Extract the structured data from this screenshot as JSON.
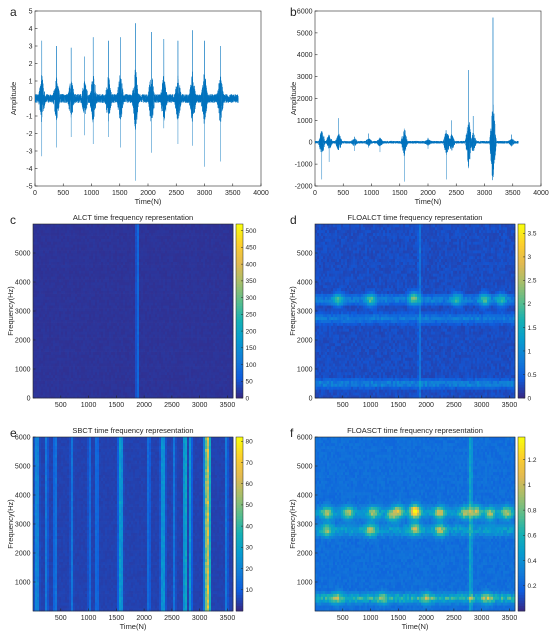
{
  "colors": {
    "signal": "#0072BD",
    "axis": "#262626",
    "parula_low": "#352A87",
    "parula_mid": "#21B1A1",
    "parula_high": "#F9FB0E"
  },
  "chart_data": [
    {
      "id": "a",
      "panel_label": "a",
      "type": "line",
      "title": "",
      "xlabel": "Time(N)",
      "ylabel": "Amplitude",
      "xlim": [
        0,
        4000
      ],
      "ylim": [
        -5,
        5
      ],
      "xticks": [
        0,
        500,
        1000,
        1500,
        2000,
        2500,
        3000,
        3500,
        4000
      ],
      "yticks": [
        -5,
        -4,
        -3,
        -2,
        -1,
        0,
        1,
        2,
        3,
        4,
        5
      ],
      "n_points": 3600,
      "baseline_noise": 0.25,
      "spikes": [
        {
          "x": 120,
          "peak": 3.3,
          "trough": -3.3
        },
        {
          "x": 380,
          "peak": 3.0,
          "trough": -2.8
        },
        {
          "x": 640,
          "peak": 2.9,
          "trough": -2.2
        },
        {
          "x": 880,
          "peak": 2.4,
          "trough": -2.1
        },
        {
          "x": 1030,
          "peak": 3.5,
          "trough": -2.6
        },
        {
          "x": 1300,
          "peak": 3.3,
          "trough": -2.2
        },
        {
          "x": 1510,
          "peak": 3.5,
          "trough": -2.8
        },
        {
          "x": 1780,
          "peak": 4.3,
          "trough": -4.7
        },
        {
          "x": 2060,
          "peak": 3.8,
          "trough": -3.1
        },
        {
          "x": 2280,
          "peak": 3.4,
          "trough": -1.7
        },
        {
          "x": 2530,
          "peak": 3.3,
          "trough": -2.6
        },
        {
          "x": 2790,
          "peak": 3.9,
          "trough": -2.7
        },
        {
          "x": 3000,
          "peak": 3.3,
          "trough": -3.9
        },
        {
          "x": 3280,
          "peak": 3.0,
          "trough": -3.6
        }
      ]
    },
    {
      "id": "b",
      "panel_label": "b",
      "type": "line",
      "title": "",
      "xlabel": "Time(N)",
      "ylabel": "Amplitude",
      "xlim": [
        0,
        4000
      ],
      "ylim": [
        -2000,
        6000
      ],
      "xticks": [
        0,
        500,
        1000,
        1500,
        2000,
        2500,
        3000,
        3500,
        4000
      ],
      "yticks": [
        -2000,
        -1000,
        0,
        1000,
        2000,
        3000,
        4000,
        5000,
        6000
      ],
      "n_points": 3600,
      "baseline_noise": 60,
      "spikes": [
        {
          "x": 120,
          "peak": 350,
          "trough": -1700
        },
        {
          "x": 250,
          "peak": 200,
          "trough": -900
        },
        {
          "x": 420,
          "peak": 1100,
          "trough": -350
        },
        {
          "x": 700,
          "peak": 250,
          "trough": -400
        },
        {
          "x": 950,
          "peak": 400,
          "trough": -250
        },
        {
          "x": 1150,
          "peak": 200,
          "trough": -450
        },
        {
          "x": 1580,
          "peak": 200,
          "trough": -1800
        },
        {
          "x": 2000,
          "peak": 200,
          "trough": -300
        },
        {
          "x": 2330,
          "peak": 300,
          "trough": -1700
        },
        {
          "x": 2420,
          "peak": 1000,
          "trough": -200
        },
        {
          "x": 2720,
          "peak": 3300,
          "trough": -350
        },
        {
          "x": 2800,
          "peak": 1200,
          "trough": -200
        },
        {
          "x": 3150,
          "peak": 5700,
          "trough": -300
        },
        {
          "x": 3480,
          "peak": 350,
          "trough": -200
        }
      ]
    },
    {
      "id": "c",
      "panel_label": "c",
      "type": "heatmap",
      "title": "ALCT time frequency representation",
      "xlabel": "",
      "ylabel": "Frequency(Hz)",
      "xlim": [
        0,
        3600
      ],
      "ylim": [
        0,
        6000
      ],
      "xticks": [
        500,
        1000,
        1500,
        2000,
        2500,
        3000,
        3500
      ],
      "yticks": [
        0,
        1000,
        2000,
        3000,
        4000,
        5000
      ],
      "colorbar_range": [
        0,
        520
      ],
      "colorbar_ticks": [
        0,
        50,
        100,
        150,
        200,
        250,
        300,
        350,
        400,
        450,
        500
      ],
      "background_level": 10,
      "vertical_bands": [
        {
          "x": 1880,
          "width": 40,
          "level": 90
        }
      ],
      "horizontal_bands": [],
      "blobs": [],
      "noise": 0.04
    },
    {
      "id": "d",
      "panel_label": "d",
      "type": "heatmap",
      "title": "FLOALCT time frequency representation",
      "xlabel": "",
      "ylabel": "Frequency(Hz)",
      "xlim": [
        0,
        3600
      ],
      "ylim": [
        0,
        6000
      ],
      "xticks": [
        500,
        1000,
        1500,
        2000,
        2500,
        3000,
        3500
      ],
      "yticks": [
        0,
        1000,
        2000,
        3000,
        4000,
        5000
      ],
      "colorbar_range": [
        0,
        3.7
      ],
      "colorbar_ticks": [
        0,
        0.5,
        1,
        1.5,
        2,
        2.5,
        3,
        3.5
      ],
      "background_level": 0.25,
      "vertical_bands": [
        {
          "x": 1880,
          "width": 30,
          "level": 0.6
        }
      ],
      "horizontal_bands": [
        {
          "y": 3400,
          "height": 250,
          "level": 0.6
        },
        {
          "y": 2750,
          "height": 250,
          "level": 0.5
        },
        {
          "y": 500,
          "height": 200,
          "level": 0.7
        }
      ],
      "blobs": [
        {
          "x": 420,
          "y": 3400,
          "level": 1.2
        },
        {
          "x": 1000,
          "y": 3400,
          "level": 1.3
        },
        {
          "x": 1780,
          "y": 3450,
          "level": 1.6
        },
        {
          "x": 2550,
          "y": 3400,
          "level": 1.1
        },
        {
          "x": 3050,
          "y": 3400,
          "level": 1.2
        },
        {
          "x": 3350,
          "y": 3400,
          "level": 1.0
        }
      ],
      "noise": 0.12
    },
    {
      "id": "e",
      "panel_label": "e",
      "type": "heatmap",
      "title": "SBCT time frequency representation",
      "xlabel": "Time(N)",
      "ylabel": "Frequency(Hz)",
      "xlim": [
        0,
        3600
      ],
      "ylim": [
        0,
        6000
      ],
      "xticks": [
        500,
        1000,
        1500,
        2000,
        2500,
        3000,
        3500
      ],
      "yticks": [
        1000,
        2000,
        3000,
        4000,
        5000,
        6000
      ],
      "colorbar_range": [
        0,
        82
      ],
      "colorbar_ticks": [
        10,
        20,
        30,
        40,
        50,
        60,
        70,
        80
      ],
      "background_level": 4,
      "vertical_bands": [
        {
          "x": 70,
          "width": 60,
          "level": 22
        },
        {
          "x": 240,
          "width": 40,
          "level": 14
        },
        {
          "x": 400,
          "width": 40,
          "level": 16
        },
        {
          "x": 700,
          "width": 40,
          "level": 12
        },
        {
          "x": 1020,
          "width": 40,
          "level": 10
        },
        {
          "x": 1150,
          "width": 40,
          "level": 14
        },
        {
          "x": 1580,
          "width": 60,
          "level": 30
        },
        {
          "x": 2080,
          "width": 40,
          "level": 12
        },
        {
          "x": 2340,
          "width": 60,
          "level": 28
        },
        {
          "x": 2540,
          "width": 40,
          "level": 12
        },
        {
          "x": 2740,
          "width": 50,
          "level": 36
        },
        {
          "x": 2830,
          "width": 40,
          "level": 24
        },
        {
          "x": 3140,
          "width": 80,
          "level": 66
        },
        {
          "x": 3480,
          "width": 40,
          "level": 14
        }
      ],
      "horizontal_bands": [],
      "blobs": [],
      "noise": 0.05
    },
    {
      "id": "f",
      "panel_label": "f",
      "type": "heatmap",
      "title": "FLOASCT time frequency representation",
      "xlabel": "Time(N)",
      "ylabel": "Frequency(Hz)",
      "xlim": [
        0,
        3600
      ],
      "ylim": [
        0,
        6000
      ],
      "xticks": [
        500,
        1000,
        1500,
        2000,
        2500,
        3000,
        3500
      ],
      "yticks": [
        1000,
        2000,
        3000,
        4000,
        5000,
        6000
      ],
      "colorbar_range": [
        0,
        1.38
      ],
      "colorbar_ticks": [
        0.2,
        0.4,
        0.6,
        0.8,
        1,
        1.2
      ],
      "background_level": 0.22,
      "vertical_bands": [
        {
          "x": 2800,
          "width": 50,
          "level": 0.35
        }
      ],
      "horizontal_bands": [
        {
          "y": 3400,
          "height": 300,
          "level": 0.25
        },
        {
          "y": 2800,
          "height": 300,
          "level": 0.25
        },
        {
          "y": 450,
          "height": 250,
          "level": 0.4
        }
      ],
      "blobs": [
        {
          "x": 220,
          "y": 3400,
          "level": 0.5
        },
        {
          "x": 220,
          "y": 2800,
          "level": 0.45
        },
        {
          "x": 600,
          "y": 3400,
          "level": 0.5
        },
        {
          "x": 1000,
          "y": 2800,
          "level": 0.55
        },
        {
          "x": 1050,
          "y": 3400,
          "level": 0.5
        },
        {
          "x": 1380,
          "y": 3300,
          "level": 0.45
        },
        {
          "x": 1500,
          "y": 3450,
          "level": 0.6
        },
        {
          "x": 1800,
          "y": 3450,
          "level": 1.05
        },
        {
          "x": 1800,
          "y": 2850,
          "level": 0.55
        },
        {
          "x": 2250,
          "y": 3400,
          "level": 0.6
        },
        {
          "x": 2250,
          "y": 2800,
          "level": 0.55
        },
        {
          "x": 2700,
          "y": 3400,
          "level": 0.5
        },
        {
          "x": 2900,
          "y": 3450,
          "level": 0.55
        },
        {
          "x": 3150,
          "y": 3350,
          "level": 0.5
        },
        {
          "x": 3450,
          "y": 3400,
          "level": 0.55
        },
        {
          "x": 400,
          "y": 450,
          "level": 0.35
        },
        {
          "x": 1200,
          "y": 450,
          "level": 0.3
        },
        {
          "x": 2000,
          "y": 450,
          "level": 0.35
        },
        {
          "x": 3100,
          "y": 450,
          "level": 0.35
        }
      ],
      "noise": 0.16
    }
  ]
}
